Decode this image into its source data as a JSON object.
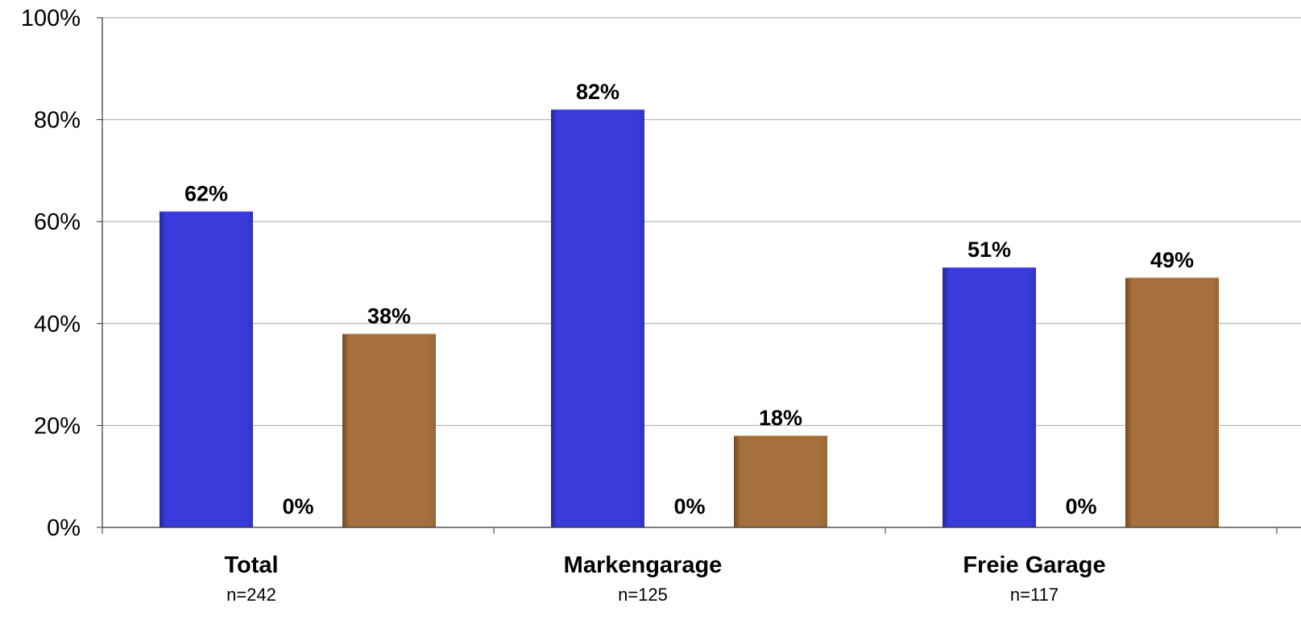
{
  "chart_data": {
    "type": "bar",
    "categories": [
      "Total",
      "Markengarage",
      "Freie Garage"
    ],
    "category_sublabels": [
      "n=242",
      "n=125",
      "n=117"
    ],
    "series": [
      {
        "values": [
          62,
          82,
          51
        ],
        "labels": [
          "62%",
          "82%",
          "51%"
        ],
        "color": "#3a3bdb"
      },
      {
        "values": [
          0,
          0,
          0
        ],
        "labels": [
          "0%",
          "0%",
          "0%"
        ],
        "color": "#ffffff"
      },
      {
        "values": [
          38,
          18,
          49
        ],
        "labels": [
          "38%",
          "18%",
          "49%"
        ],
        "color": "#a5703b"
      }
    ],
    "ylim": [
      0,
      100
    ],
    "yticks": [
      "0%",
      "20%",
      "40%",
      "60%",
      "80%",
      "100%"
    ],
    "grid": true,
    "legend": "none"
  }
}
